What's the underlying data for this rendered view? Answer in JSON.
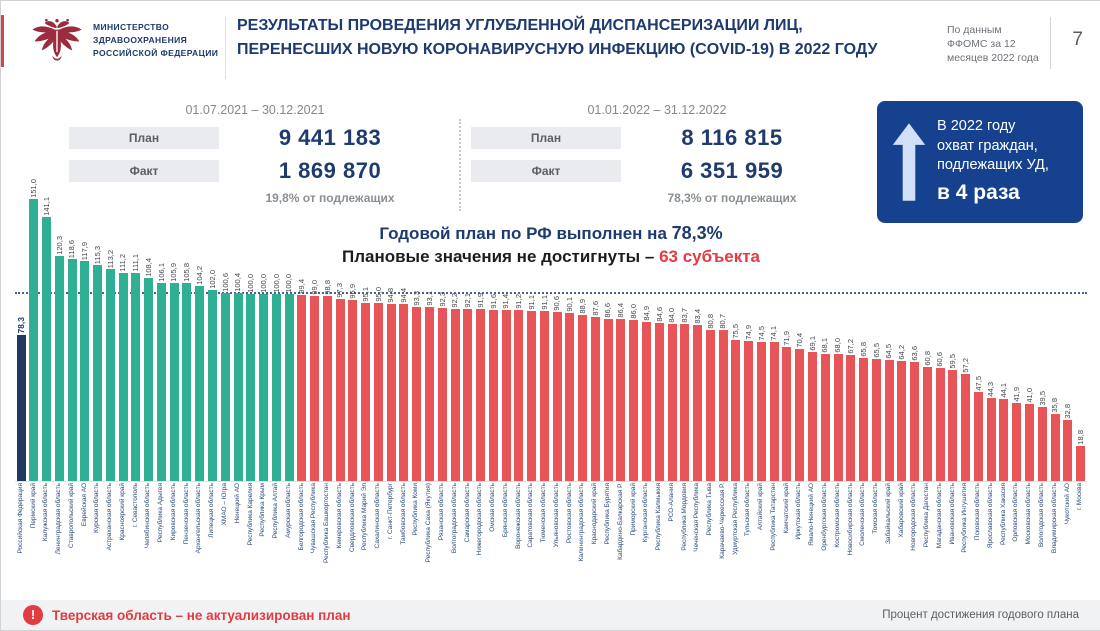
{
  "header": {
    "ministry_name": "Министерство здравоохранения Российской Федерации",
    "title": "РЕЗУЛЬТАТЫ ПРОВЕДЕНИЯ УГЛУБЛЕННОЙ ДИСПАНСЕРИЗАЦИИ ЛИЦ, ПЕРЕНЕСШИХ НОВУЮ КОРОНАВИРУСНУЮ ИНФЕКЦИЮ (COVID-19) В 2022 ГОДУ",
    "source_note": "По данным ФФОМС за 12 месяцев 2022 года",
    "page_number": "7"
  },
  "periods": [
    {
      "range": "01.07.2021 – 30.12.2021",
      "plan_label": "План",
      "plan_value": "9 441 183",
      "fact_label": "Факт",
      "fact_value": "1 869 870",
      "note": "19,8% от подлежащих"
    },
    {
      "range": "01.01.2022 – 31.12.2022",
      "plan_label": "План",
      "plan_value": "8 116 815",
      "fact_label": "Факт",
      "fact_value": "6 351 959",
      "note": "78,3% от подлежащих"
    }
  ],
  "highlight_box": {
    "line1": "В 2022 году",
    "line2": "охват граждан,",
    "line3": "подлежащих УД,",
    "strong": "в 4 раза"
  },
  "annotations": {
    "line1_prefix": "Годовой план по РФ выполнен на ",
    "line1_value": "78,3%",
    "line2_prefix": "Плановые значения не достигнуты – ",
    "line2_value": "63 субъекта"
  },
  "footer": {
    "warning_icon": "!",
    "warning_text": "Тверская область – не актуализирован план",
    "axis_note": "Процент достижения годового плана"
  },
  "icons": {
    "emblem": "double-headed-eagle-emblem",
    "arrow": "up-arrow",
    "warning": "exclamation-circle"
  },
  "colors": {
    "accent_blue": "#1e3a6e",
    "box_blue": "#16418f",
    "warning_red": "#e23b41"
  },
  "chart_data": {
    "type": "bar",
    "title": "Процент достижения годового плана",
    "ylabel": "Процент достижения годового плана",
    "ylim": [
      0,
      155
    ],
    "reference_line": 100,
    "legend_position": "none",
    "grid": false,
    "colors": {
      "federal": "#1f3864",
      "met": "#2fb095",
      "not_met": "#e85558"
    },
    "categories": [
      "Российская Федерация",
      "Пермский край",
      "Калужская область",
      "Ленинградская область",
      "Ставропольский край",
      "Еврейская АО",
      "Курская область",
      "Астраханская область",
      "Красноярский край",
      "г. Севастополь",
      "Челябинская область",
      "Республика Адыгея",
      "Кировская область",
      "Пензенская область",
      "Архангельская область",
      "Липецкая область",
      "ХМАО – Югра",
      "Ненецкий АО",
      "Республика Карелия",
      "Республика Крым",
      "Республика Алтай",
      "Амурская область",
      "Белгородская область",
      "Чувашская Республика",
      "Республика Башкортостан",
      "Кемеровская область",
      "Свердловская область",
      "Республика Марий Эл",
      "Сахалинская область",
      "г. Санкт-Петербург",
      "Тамбовская область",
      "Республика Коми",
      "Республика Саха (Якутия)",
      "Рязанская область",
      "Волгоградская область",
      "Самарская область",
      "Нижегородская область",
      "Омская область",
      "Брянская область",
      "Воронежская область",
      "Саратовская область",
      "Тюменская область",
      "Ульяновская область",
      "Ростовская область",
      "Калининградская область",
      "Краснодарский край",
      "Республика Бурятия",
      "Кабардино-Балкарская Р.",
      "Приморский край",
      "Курганская область",
      "Республика Калмыкия",
      "РСО-Алания",
      "Республика Мордовия",
      "Чеченская Республика",
      "Республика Тыва",
      "Карачаево-Черкесская Р.",
      "Удмуртская Республика",
      "Тульская область",
      "Алтайский край",
      "Республика Татарстан",
      "Камчатский край",
      "Иркутская область",
      "Ямало-Ненецкий АО",
      "Оренбургская область",
      "Костромская область",
      "Новосибирская область",
      "Смоленская область",
      "Томская область",
      "Забайкальский край",
      "Хабаровский край",
      "Новгородская область",
      "Республика Дагестан",
      "Магаданская область",
      "Ивановская область",
      "Республика Ингушетия",
      "Псковская область",
      "Ярославская область",
      "Республика Хакасия",
      "Орловская область",
      "Московская область",
      "Вологодская область",
      "Владимирская область",
      "Чукотский АО",
      "г. Москва"
    ],
    "values": [
      78.3,
      151.0,
      141.1,
      120.3,
      118.6,
      117.9,
      115.3,
      113.2,
      111.2,
      111.1,
      108.4,
      106.1,
      105.9,
      105.8,
      104.2,
      102.0,
      100.6,
      100.4,
      100.0,
      100.0,
      100.0,
      100.0,
      99.4,
      99.0,
      98.8,
      97.3,
      96.9,
      95.1,
      95.0,
      94.8,
      94.4,
      93.3,
      93.1,
      92.3,
      92.2,
      92.1,
      91.9,
      91.6,
      91.4,
      91.2,
      91.1,
      91.1,
      90.6,
      90.1,
      88.9,
      87.6,
      86.6,
      86.4,
      86.0,
      84.9,
      84.6,
      84.0,
      83.7,
      83.4,
      80.8,
      80.7,
      75.5,
      74.9,
      74.5,
      74.1,
      71.9,
      70.4,
      69.1,
      68.1,
      68.0,
      67.2,
      65.8,
      65.5,
      64.5,
      64.2,
      63.6,
      60.8,
      60.6,
      59.5,
      57.2,
      47.5,
      44.3,
      44.1,
      41.9,
      41.0,
      39.5,
      35.8,
      32.8,
      18.8
    ]
  }
}
